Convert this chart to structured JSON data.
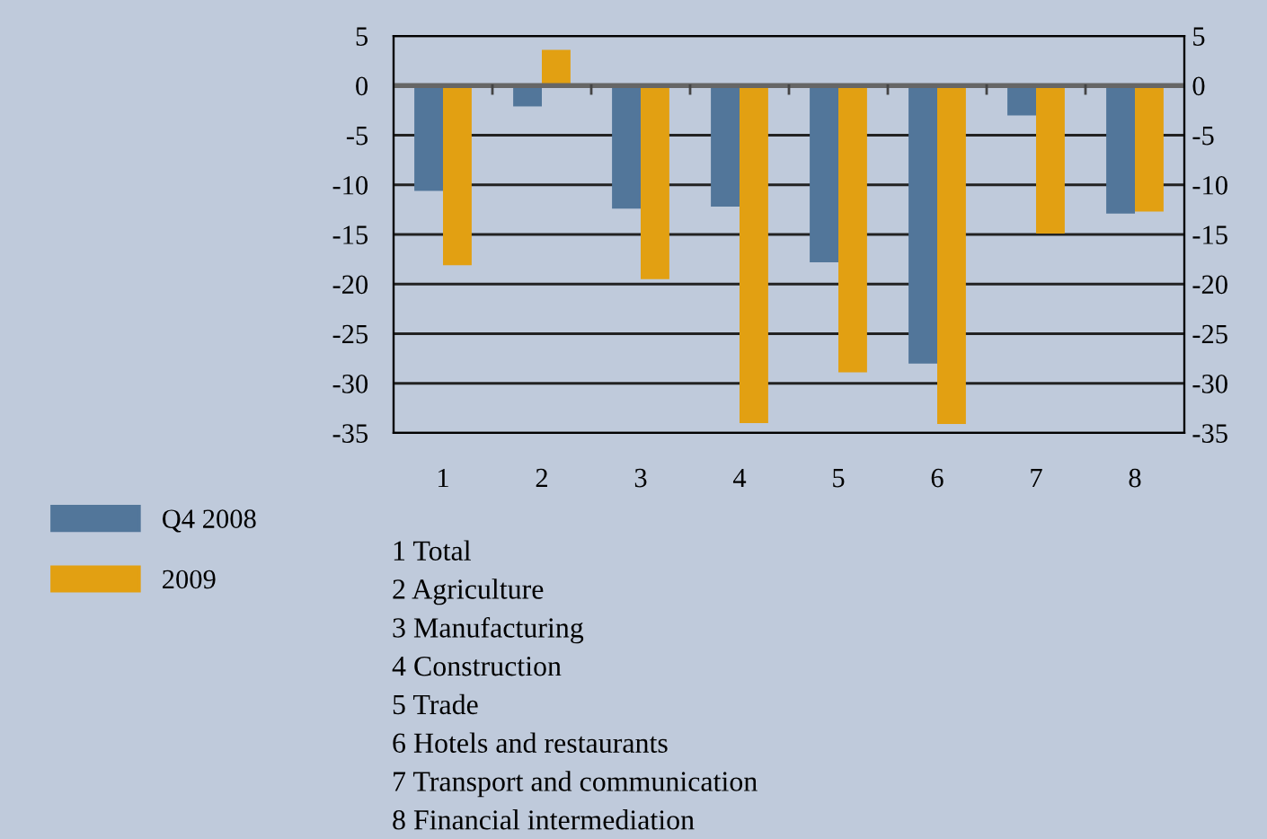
{
  "chart_data": {
    "type": "bar",
    "categories": [
      "1",
      "2",
      "3",
      "4",
      "5",
      "6",
      "7",
      "8"
    ],
    "series": [
      {
        "name": "Q4 2008",
        "color": "#52769a",
        "values": [
          -10.6,
          -2.1,
          -12.4,
          -12.2,
          -17.8,
          -28.0,
          -3.0,
          -12.9
        ]
      },
      {
        "name": "2009",
        "color": "#e2a012",
        "values": [
          -18.1,
          3.6,
          -19.5,
          -34.0,
          -28.9,
          -34.1,
          -14.9,
          -12.7
        ]
      }
    ],
    "ylim": [
      -35,
      5
    ],
    "yticks": [
      -35,
      -30,
      -25,
      -20,
      -15,
      -10,
      -5,
      0,
      5
    ],
    "y2lim": [
      -35,
      5
    ],
    "y2ticks": [
      -35,
      -30,
      -25,
      -20,
      -15,
      -10,
      -5,
      0,
      5
    ],
    "grid": "y",
    "legend": "bottom left",
    "annotations": [
      "1 Total",
      "2 Agriculture",
      "3 Manufacturing",
      "4 Construction",
      "5 Trade",
      "6 Hotels and restaurants",
      "7 Transport and communication",
      "8 Financial intermediation"
    ]
  }
}
